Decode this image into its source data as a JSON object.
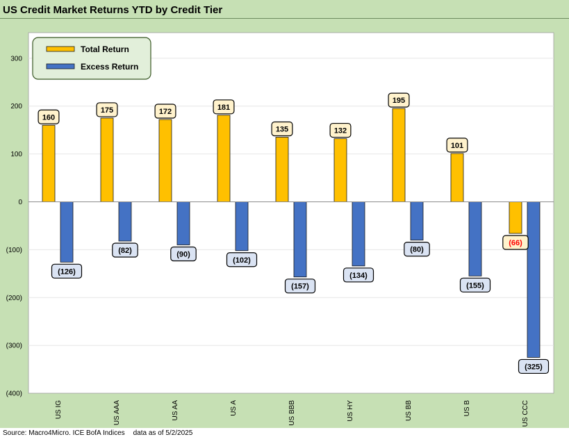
{
  "title": "US Credit Market Returns YTD by Credit Tier",
  "source": "Source: Macro4Micro. ICE BofA Indices",
  "data_as_of": "data as of 5/2/2025",
  "colors": {
    "total": "#ffc000",
    "excess": "#4472c4",
    "total_label_bg": "#fff2cc",
    "excess_label_bg": "#dae3f3",
    "negative_label_text": "#ff0000",
    "frame_bg": "#c6e0b4",
    "legend_bg": "#e2efda"
  },
  "chart_data": {
    "type": "bar",
    "title": "US Credit Market Returns YTD by Credit Tier",
    "categories": [
      "US IG",
      "US AAA",
      "US AA",
      "US A",
      "US BBB",
      "US HY",
      "US BB",
      "US B",
      "US CCC"
    ],
    "series": [
      {
        "name": "Total Return",
        "values": [
          160,
          175,
          172,
          181,
          135,
          132,
          195,
          101,
          -66
        ],
        "labels": [
          "160",
          "175",
          "172",
          "181",
          "135",
          "132",
          "195",
          "101",
          "(66)"
        ]
      },
      {
        "name": "Excess Return",
        "values": [
          -126,
          -82,
          -90,
          -102,
          -157,
          -134,
          -80,
          -155,
          -325
        ],
        "labels": [
          "(126)",
          "(82)",
          "(90)",
          "(102)",
          "(157)",
          "(134)",
          "(80)",
          "(155)",
          "(325)"
        ]
      }
    ],
    "yticks": [
      300,
      200,
      100,
      0,
      -100,
      -200,
      -300,
      -400
    ],
    "ytick_labels": [
      "300",
      "200",
      "100",
      "0",
      "(100)",
      "(200)",
      "(300)",
      "(400)"
    ],
    "ylim": [
      -400,
      340
    ],
    "xlabel": "",
    "ylabel": "",
    "grid": true,
    "legend_position": "top-left"
  }
}
